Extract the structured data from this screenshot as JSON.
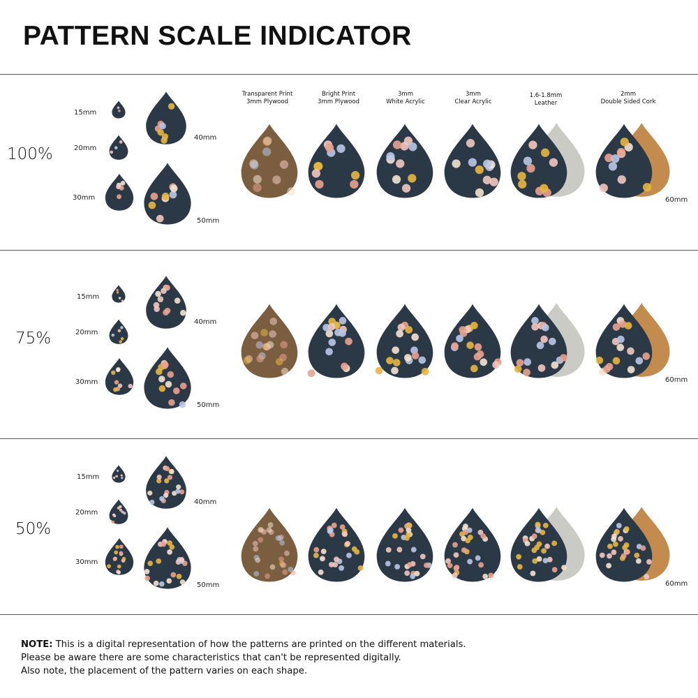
{
  "title": "PATTERN SCALE INDICATOR",
  "materials": [
    {
      "line1": "Transparent Print",
      "line2": "3mm Plywood"
    },
    {
      "line1": "Bright Print",
      "line2": "3mm Plywood"
    },
    {
      "line1": "3mm",
      "line2": "White Acrylic"
    },
    {
      "line1": "3mm",
      "line2": "Clear Acrylic"
    },
    {
      "line1": "1.6-1.8mm",
      "line2": "Leather"
    },
    {
      "line1": "2mm",
      "line2": "Double Sided Cork"
    }
  ],
  "rows": [
    {
      "scale": "100%",
      "sizes": [
        "15mm",
        "20mm",
        "30mm",
        "40mm",
        "50mm"
      ],
      "large_size": "60mm"
    },
    {
      "scale": "75%",
      "sizes": [
        "15mm",
        "20mm",
        "30mm",
        "40mm",
        "50mm"
      ],
      "large_size": "60mm"
    },
    {
      "scale": "50%",
      "sizes": [
        "15mm",
        "20mm",
        "30mm",
        "40mm",
        "50mm"
      ],
      "large_size": "60mm"
    }
  ],
  "note": {
    "label": "NOTE:",
    "line1": "This is a digital representation of how the patterns are printed on the different materials.",
    "line2": "Please be aware there are some characteristics that can't be represented digitally.",
    "line3": "Also note, the placement of the pattern varies on each shape."
  },
  "colors": {
    "navy": "#2b3946",
    "plywood": "#7b5e40",
    "leather_back": "#c9cbc4",
    "cork_back": "#c48b4e"
  }
}
